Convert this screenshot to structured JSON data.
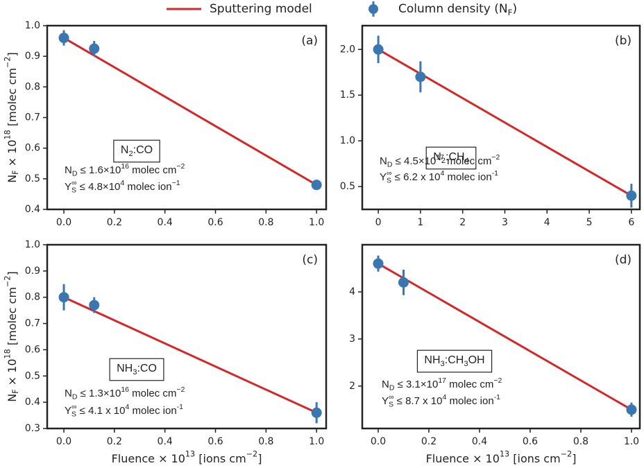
{
  "legend": [
    {
      "name": [
        {
          "text": "Sputtering model"
        }
      ],
      "color": "#d62728",
      "marker": "line"
    },
    {
      "name": [
        {
          "text": "Column density (N"
        },
        {
          "sub": "F"
        },
        {
          "text": ")"
        }
      ],
      "color": "#3a76b0",
      "marker": "errorbar"
    }
  ],
  "chart_data": [
    {
      "type": "errorbar",
      "panel_label": "(a)",
      "sample": [
        {
          "text": "N"
        },
        {
          "sub": "2"
        },
        {
          "text": ":CO"
        }
      ],
      "notes": [
        [
          {
            "text": "N"
          },
          {
            "sub": "D"
          },
          {
            "text": " ≤ 1.6×10"
          },
          {
            "sup": "16"
          },
          {
            "text": "  molec cm"
          },
          {
            "sup": "−2"
          }
        ],
        [
          {
            "text": "Y"
          },
          {
            "sub": "S"
          },
          {
            "sup": "∞"
          },
          {
            "text": " ≤ 4.8×10"
          },
          {
            "sup": "4"
          },
          {
            "text": "  molec ion"
          },
          {
            "sup": "−1"
          }
        ]
      ],
      "y_label": [
        {
          "text": "N"
        },
        {
          "sub": "F"
        },
        {
          "text": " × 10"
        },
        {
          "sup": "18"
        },
        {
          "text": " [molec cm"
        },
        {
          "sup": "−2"
        },
        {
          "text": "]"
        }
      ],
      "data": {
        "x": [
          0,
          0.12,
          1.0
        ],
        "values": [
          0.96,
          0.925,
          0.48
        ],
        "errors": [
          0.025,
          0.025,
          0.01
        ]
      },
      "model": {
        "x": [
          0,
          1.0
        ],
        "values": [
          0.96,
          0.48
        ]
      },
      "xlim": [
        -0.066,
        1.038
      ],
      "ylim": [
        0.4,
        1.0
      ],
      "xticks": [
        {
          "value": 0,
          "label": "0.0"
        },
        0.2,
        0.4,
        0.6,
        0.8,
        {
          "value": 1,
          "label": "1.0"
        }
      ],
      "yticks": [
        0.4,
        0.5,
        0.6,
        0.7,
        0.8,
        0.9,
        {
          "value": 1,
          "label": "1.0"
        }
      ]
    },
    {
      "type": "errorbar",
      "panel_label": "(b)",
      "sample": [
        {
          "text": "N"
        },
        {
          "sub": "2"
        },
        {
          "text": ":CH"
        },
        {
          "sub": "4"
        }
      ],
      "notes": [
        [
          {
            "text": "N"
          },
          {
            "sub": "D"
          },
          {
            "text": " ≤ 4.5×10"
          },
          {
            "sup": "17"
          },
          {
            "text": "  molec cm"
          },
          {
            "sup": "−2"
          }
        ],
        [
          {
            "text": "Y"
          },
          {
            "sub": "S"
          },
          {
            "sup": "∞"
          },
          {
            "text": " ≤  6.2 x 10"
          },
          {
            "sup": "4"
          },
          {
            "text": " molec ion"
          },
          {
            "sup": "-1"
          }
        ]
      ],
      "data": {
        "x": [
          0,
          1,
          6
        ],
        "values": [
          2.0,
          1.7,
          0.4
        ],
        "errors": [
          0.15,
          0.17,
          0.13
        ]
      },
      "model": {
        "x": [
          0,
          6
        ],
        "values": [
          2.0,
          0.4
        ]
      },
      "xlim": [
        -0.38,
        6.2
      ],
      "ylim": [
        0.25,
        2.26
      ],
      "xticks": [
        0,
        1,
        2,
        3,
        4,
        5,
        6
      ],
      "yticks": [
        0.5,
        {
          "value": 1,
          "label": "1.0"
        },
        1.5,
        {
          "value": 2,
          "label": "2.0"
        }
      ]
    },
    {
      "type": "errorbar",
      "panel_label": "(c)",
      "sample": [
        {
          "text": "NH"
        },
        {
          "sub": "3"
        },
        {
          "text": ":CO"
        }
      ],
      "notes": [
        [
          {
            "text": "N"
          },
          {
            "sub": "D"
          },
          {
            "text": " ≤ 1.3×10"
          },
          {
            "sup": "16"
          },
          {
            "text": "  molec cm"
          },
          {
            "sup": "−2"
          }
        ],
        [
          {
            "text": "Y"
          },
          {
            "sub": "S"
          },
          {
            "sup": "∞"
          },
          {
            "text": " ≤  4.1 x 10"
          },
          {
            "sup": "4"
          },
          {
            "text": " molec ion"
          },
          {
            "sup": "-1"
          }
        ]
      ],
      "y_label": [
        {
          "text": "N"
        },
        {
          "sub": "F"
        },
        {
          "text": " × 10"
        },
        {
          "sup": "18"
        },
        {
          "text": " [molec cm"
        },
        {
          "sup": "−2"
        },
        {
          "text": "]"
        }
      ],
      "x_label": [
        {
          "text": "Fluence × 10"
        },
        {
          "sup": "13"
        },
        {
          "text": " [ions cm"
        },
        {
          "sup": "−2"
        },
        {
          "text": "]"
        }
      ],
      "data": {
        "x": [
          0,
          0.12,
          1.0
        ],
        "values": [
          0.8,
          0.77,
          0.36
        ],
        "errors": [
          0.05,
          0.03,
          0.04
        ]
      },
      "model": {
        "x": [
          0,
          1.0
        ],
        "values": [
          0.8,
          0.36
        ]
      },
      "xlim": [
        -0.066,
        1.038
      ],
      "ylim": [
        0.3,
        1.0
      ],
      "xticks": [
        {
          "value": 0,
          "label": "0.0"
        },
        0.2,
        0.4,
        0.6,
        0.8,
        {
          "value": 1,
          "label": "1.0"
        }
      ],
      "yticks": [
        0.3,
        0.4,
        0.5,
        0.6,
        0.7,
        0.8,
        0.9,
        {
          "value": 1,
          "label": "1.0"
        }
      ]
    },
    {
      "type": "errorbar",
      "panel_label": "(d)",
      "sample": [
        {
          "text": "NH"
        },
        {
          "sub": "3"
        },
        {
          "text": ":CH"
        },
        {
          "sub": "3"
        },
        {
          "text": "OH"
        }
      ],
      "notes": [
        [
          {
            "text": "N"
          },
          {
            "sub": "D"
          },
          {
            "text": " ≤ 3.1×10"
          },
          {
            "sup": "17"
          },
          {
            "text": "  molec cm"
          },
          {
            "sup": "−2"
          }
        ],
        [
          {
            "text": "Y"
          },
          {
            "sub": "S"
          },
          {
            "sup": "∞"
          },
          {
            "text": " ≤  8.7 x 10"
          },
          {
            "sup": "4"
          },
          {
            "text": " molec ion"
          },
          {
            "sup": "-1"
          }
        ]
      ],
      "x_label": [
        {
          "text": "Fluence × 10"
        },
        {
          "sup": "13"
        },
        {
          "text": " [ions cm"
        },
        {
          "sup": "−2"
        },
        {
          "text": "]"
        }
      ],
      "data": {
        "x": [
          0,
          0.1,
          1.0
        ],
        "values": [
          4.6,
          4.2,
          1.5
        ],
        "errors": [
          0.17,
          0.27,
          0.15
        ]
      },
      "model": {
        "x": [
          0,
          1.0
        ],
        "values": [
          4.6,
          1.5
        ]
      },
      "xlim": [
        -0.063,
        1.033
      ],
      "ylim": [
        1.1,
        5.0
      ],
      "xticks": [
        {
          "value": 0,
          "label": "0.0"
        },
        0.2,
        0.4,
        0.6,
        0.8,
        {
          "value": 1,
          "label": "1.0"
        }
      ],
      "yticks": [
        2,
        3,
        4
      ]
    }
  ]
}
